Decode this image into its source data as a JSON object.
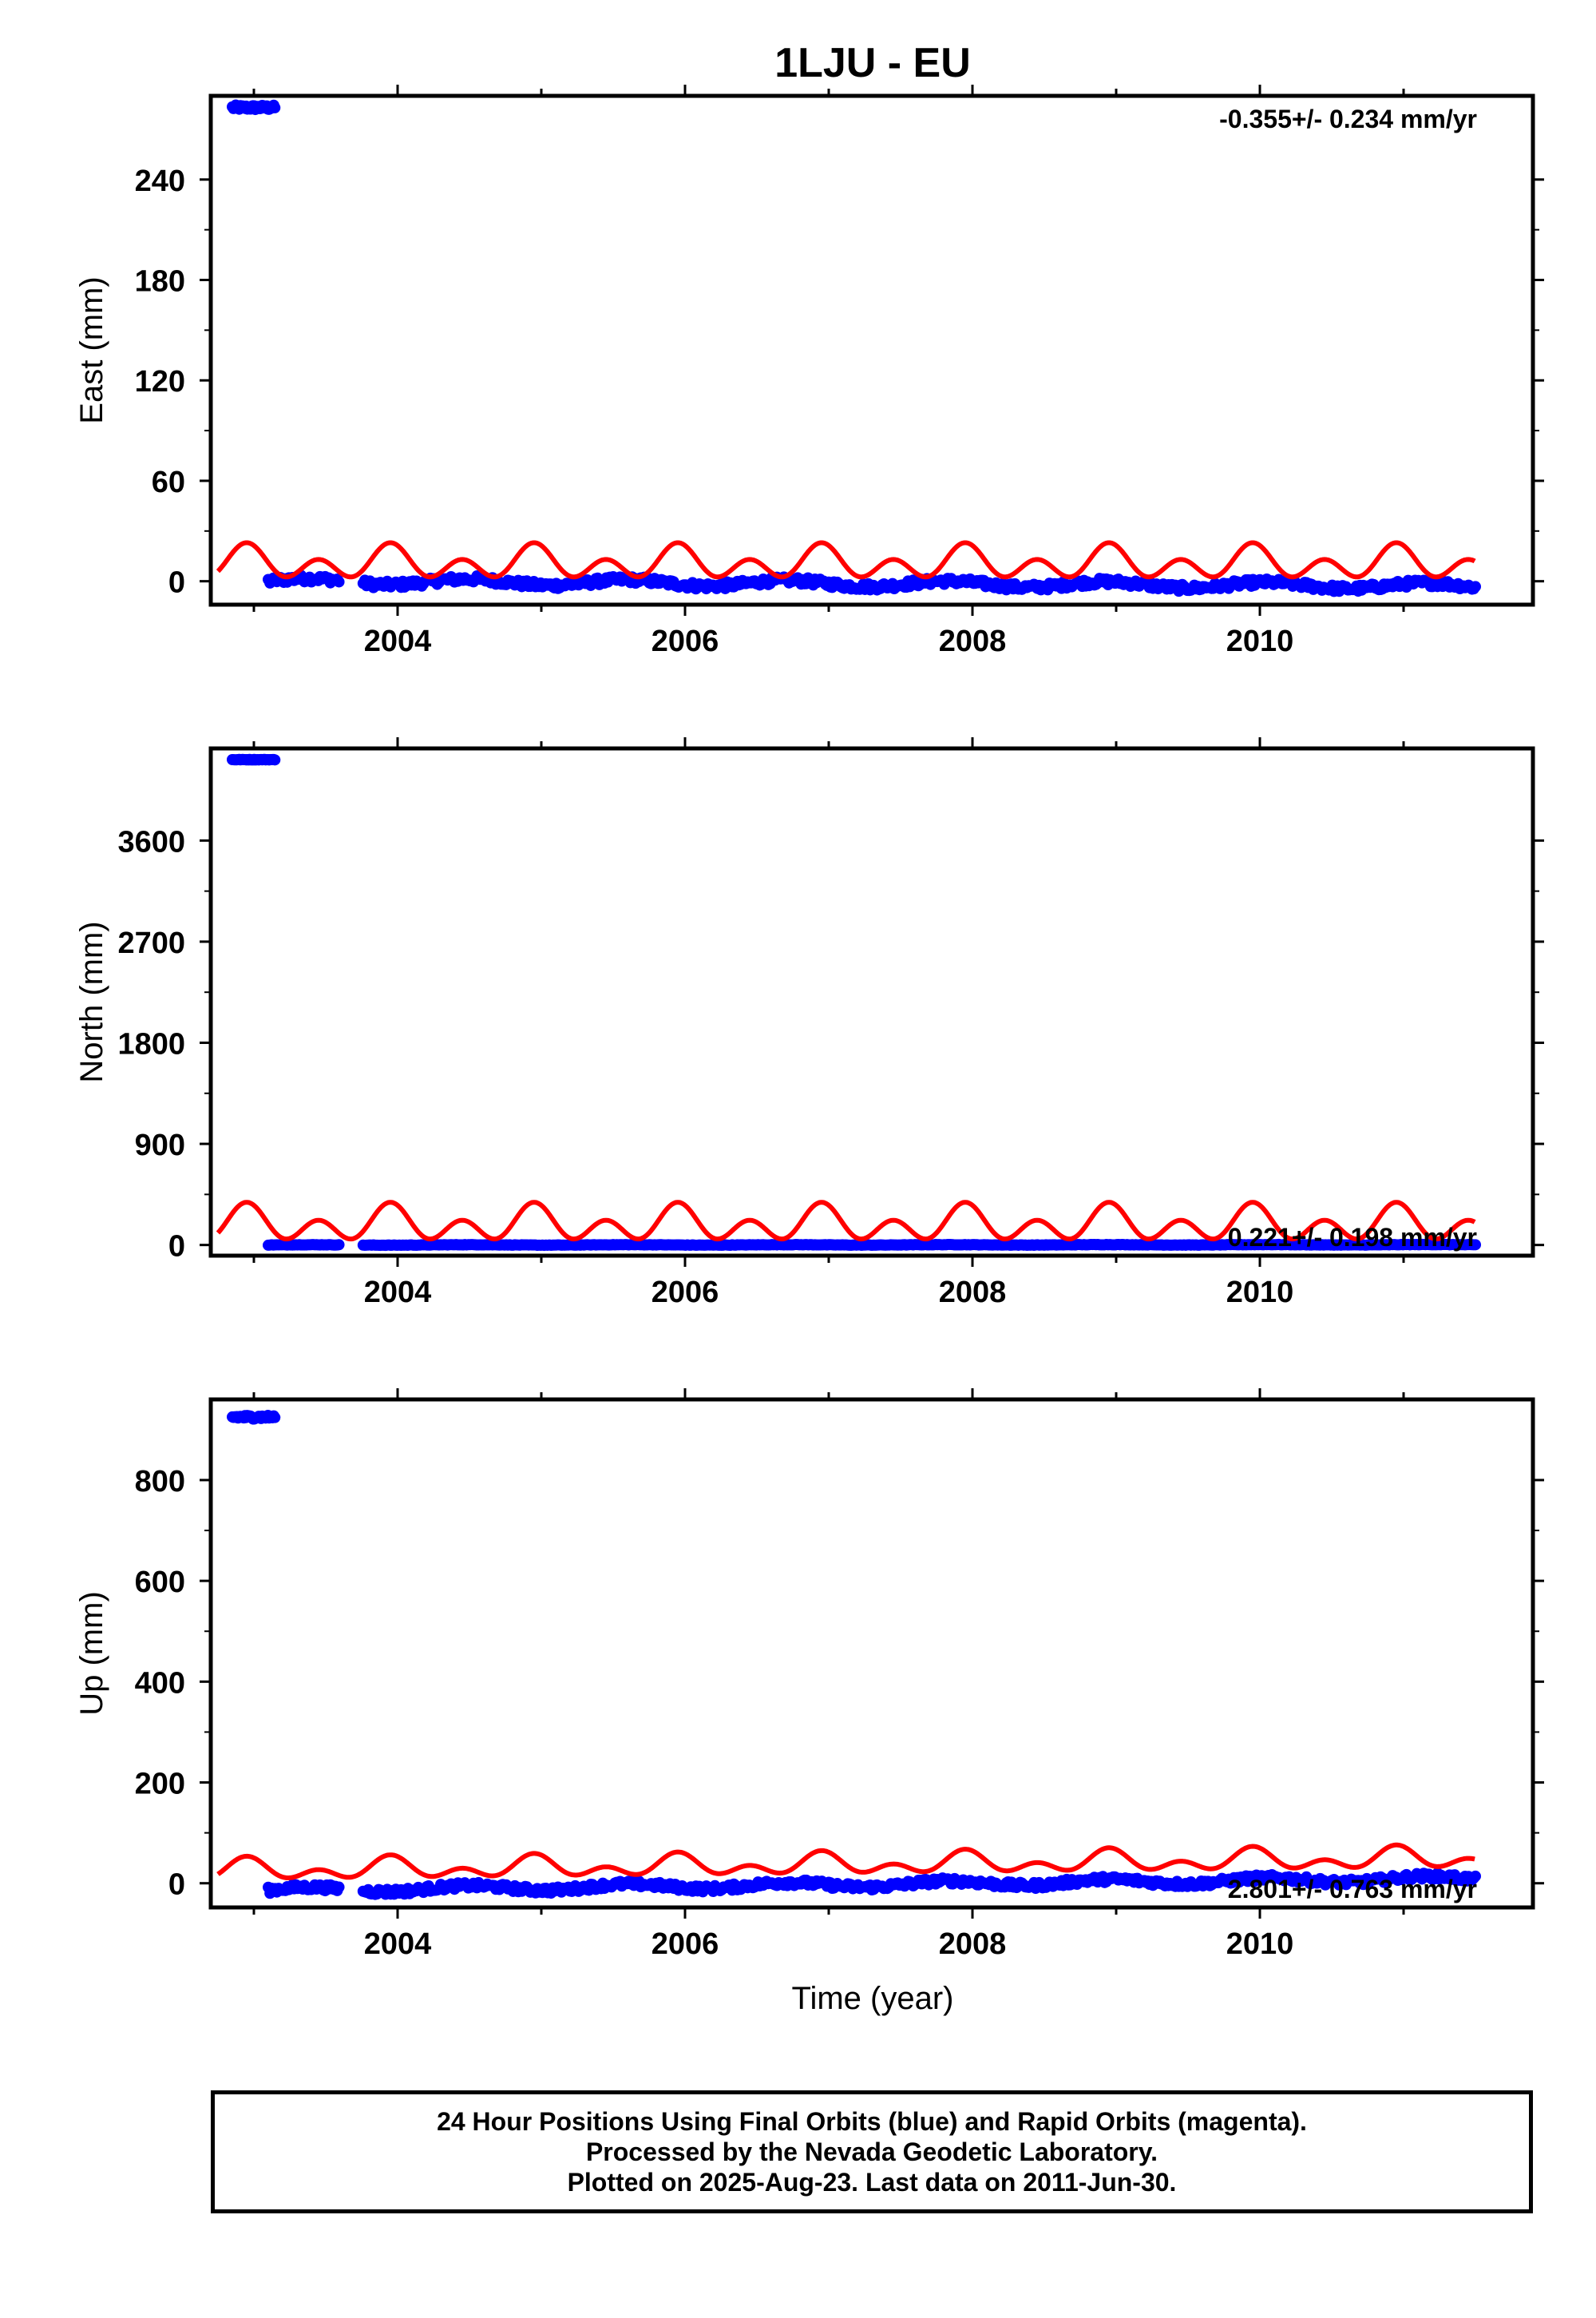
{
  "title": "1LJU - EU",
  "xlabel": "Time (year)",
  "colors": {
    "final_orbits": "#0000ff",
    "model": "#ff0000",
    "axes": "#000000"
  },
  "chart_data": [
    {
      "type": "scatter",
      "ylabel": "East (mm)",
      "rate_text": "-0.355+/- 0.234 mm/yr",
      "xlim": [
        2002.7,
        2011.9
      ],
      "ylim": [
        -14,
        290
      ],
      "xticks": [
        2004,
        2006,
        2008,
        2010
      ],
      "yticks": [
        0,
        60,
        120,
        180,
        240
      ],
      "points": {
        "early_offset": {
          "x_range": [
            2002.85,
            2003.15
          ],
          "y": 283,
          "spread": 3
        },
        "main_start": 2003.1,
        "end": 2011.5,
        "gap": [
          2003.6,
          2003.75
        ],
        "amplitude": 3,
        "trend_mm_per_yr": -0.355,
        "offset_at_start": 0
      },
      "model": {
        "amplitude": 12.5,
        "center": 10.5,
        "period_yr": 1.0,
        "peak_at": 2002.95,
        "harmonic": 0.6,
        "x_range": [
          2002.75,
          2011.5
        ]
      }
    },
    {
      "type": "scatter",
      "ylabel": "North (mm)",
      "rate_text": "0.221+/- 0.198 mm/yr",
      "xlim": [
        2002.7,
        2011.9
      ],
      "ylim": [
        -95,
        4420
      ],
      "xticks": [
        2004,
        2006,
        2008,
        2010
      ],
      "yticks": [
        0,
        900,
        1800,
        2700,
        3600
      ],
      "points": {
        "early_offset": {
          "x_range": [
            2002.85,
            2003.15
          ],
          "y": 4320,
          "spread": 5
        },
        "main_start": 2003.1,
        "end": 2011.5,
        "gap": [
          2003.6,
          2003.75
        ],
        "amplitude": 3,
        "trend_mm_per_yr": 0.221,
        "offset_at_start": 0
      },
      "model": {
        "amplitude": 200,
        "center": 180,
        "period_yr": 1.0,
        "peak_at": 2002.95,
        "harmonic": 0.6,
        "x_range": [
          2002.75,
          2011.5
        ]
      }
    },
    {
      "type": "scatter",
      "ylabel": "Up (mm)",
      "rate_text": "2.801+/- 0.763 mm/yr",
      "xlim": [
        2002.7,
        2011.9
      ],
      "ylim": [
        -48,
        960
      ],
      "xticks": [
        2004,
        2006,
        2008,
        2010
      ],
      "yticks": [
        0,
        200,
        400,
        600,
        800
      ],
      "points": {
        "early_offset": {
          "x_range": [
            2002.85,
            2003.15
          ],
          "y": 925,
          "spread": 8
        },
        "main_start": 2003.1,
        "end": 2011.5,
        "gap": [
          2003.6,
          2003.75
        ],
        "amplitude": 9,
        "trend_mm_per_yr": 2.801,
        "offset_at_start": -14
      },
      "model": {
        "amplitude": 28,
        "center": 25,
        "period_yr": 1.0,
        "peak_at": 2002.95,
        "harmonic": 0.5,
        "trend_mm_per_yr": 2.801,
        "x_range": [
          2002.75,
          2011.5
        ]
      }
    }
  ],
  "caption": {
    "line1": "24 Hour Positions Using Final Orbits (blue) and Rapid Orbits (magenta).",
    "line2": "Processed by the Nevada Geodetic Laboratory.",
    "line3": "Plotted on 2025-Aug-23. Last data on 2011-Jun-30."
  }
}
